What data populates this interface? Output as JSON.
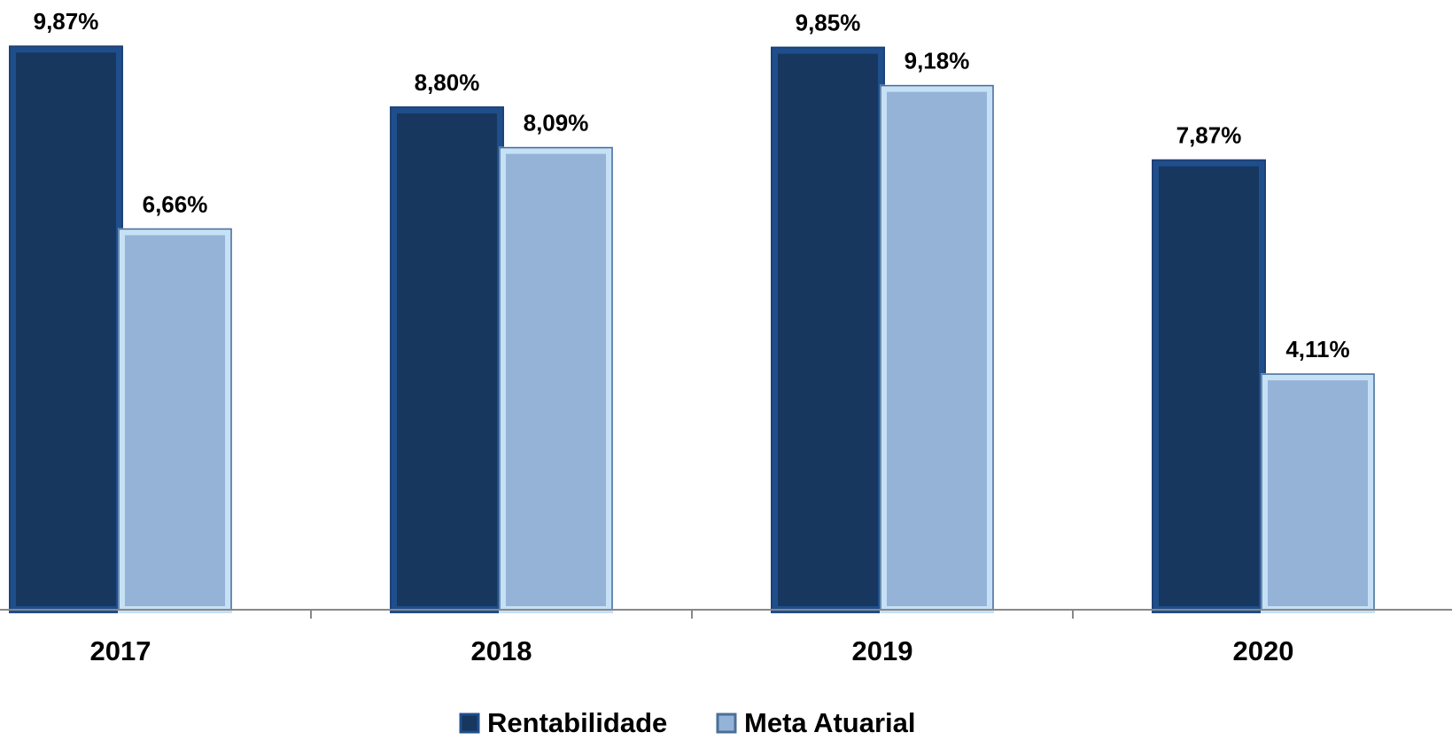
{
  "chart_data": {
    "type": "bar",
    "categories": [
      "2017",
      "2018",
      "2019",
      "2020"
    ],
    "series": [
      {
        "name": "Rentabilidade",
        "color": "#17375e",
        "values": [
          9.87,
          8.8,
          9.85,
          7.87
        ],
        "value_labels": [
          "9,87%",
          "8,80%",
          "9,85%",
          "7,87%"
        ]
      },
      {
        "name": "Meta Atuarial",
        "color": "#95b3d7",
        "values": [
          6.66,
          8.09,
          9.18,
          4.11
        ],
        "value_labels": [
          "6,66%",
          "8,09%",
          "9,18%",
          "4,11%"
        ]
      }
    ],
    "ylim": [
      0,
      10
    ],
    "legend": "bottom"
  }
}
